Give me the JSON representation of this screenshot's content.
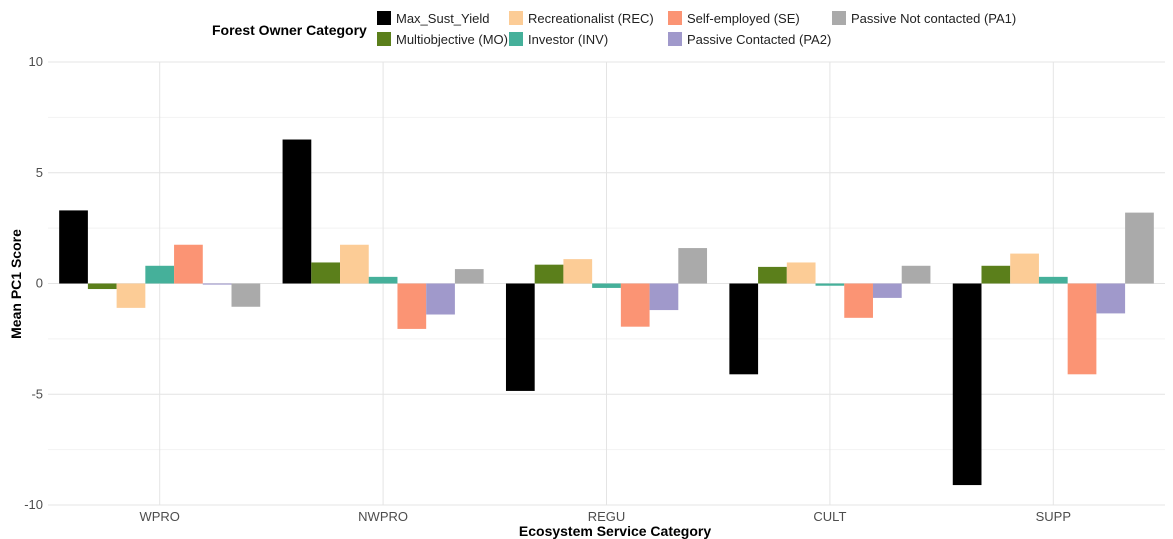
{
  "chart_data": {
    "type": "bar",
    "title": "",
    "xlabel": "Ecosystem Service Category",
    "ylabel": "Mean PC1 Score",
    "ylim": [
      -10,
      10
    ],
    "yticks": [
      10,
      5,
      0,
      -5,
      -10
    ],
    "ytick_labels": [
      "10",
      "5",
      "0",
      "-5",
      "-10"
    ],
    "grid": true,
    "legend_title": "Forest Owner Category",
    "legend_position": "top",
    "categories": [
      "WPRO",
      "NWPRO",
      "REGU",
      "CULT",
      "SUPP"
    ],
    "series": [
      {
        "name": "Max_Sust_Yield",
        "color": "#000000",
        "values": [
          3.3,
          6.5,
          -4.85,
          -4.1,
          -9.1
        ]
      },
      {
        "name": "Multiobjective (MO)",
        "color": "#5B7F1B",
        "values": [
          -0.25,
          0.95,
          0.85,
          0.75,
          0.8
        ]
      },
      {
        "name": "Recreationalist (REC)",
        "color": "#FCCC96",
        "values": [
          -1.1,
          1.75,
          1.1,
          0.95,
          1.35
        ]
      },
      {
        "name": "Investor (INV)",
        "color": "#45B09A",
        "values": [
          0.8,
          0.3,
          -0.2,
          -0.1,
          0.3
        ]
      },
      {
        "name": "Self-employed (SE)",
        "color": "#FB9474",
        "values": [
          1.75,
          -2.05,
          -1.95,
          -1.55,
          -4.1
        ]
      },
      {
        "name": "Passive Contacted (PA2)",
        "color": "#A099CB",
        "values": [
          -0.05,
          -1.4,
          -1.2,
          -0.65,
          -1.35
        ]
      },
      {
        "name": "Passive Not contacted (PA1)",
        "color": "#AAAAAA",
        "values": [
          -1.05,
          0.65,
          1.6,
          0.8,
          3.2
        ]
      }
    ]
  }
}
